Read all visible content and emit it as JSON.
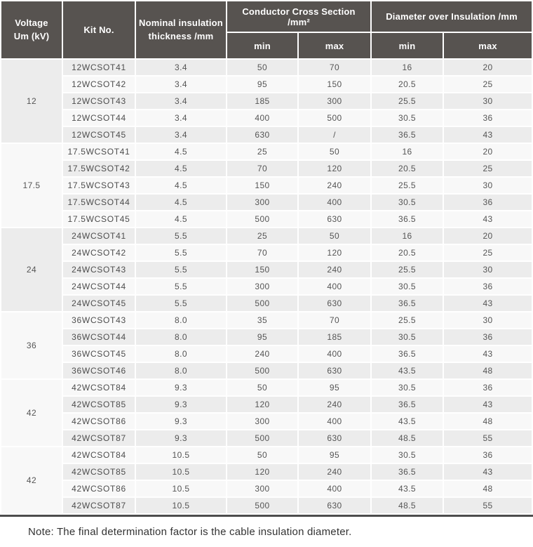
{
  "table": {
    "headers": {
      "voltage_line1": "Voltage",
      "voltage_line2": "Um (kV)",
      "kit_no": "Kit No.",
      "nominal_insulation": "Nominal insulation thickness /mm",
      "conductor_group": "Conductor Cross Section /mm²",
      "diameter_group": "Diameter over Insulation /mm",
      "min": "min",
      "max": "max"
    },
    "groups": [
      {
        "voltage": "12",
        "rows": [
          {
            "kit_no": "12WCSOT41",
            "thickness": "3.4",
            "ccs_min": "50",
            "ccs_max": "70",
            "dia_min": "16",
            "dia_max": "20"
          },
          {
            "kit_no": "12WCSOT42",
            "thickness": "3.4",
            "ccs_min": "95",
            "ccs_max": "150",
            "dia_min": "20.5",
            "dia_max": "25"
          },
          {
            "kit_no": "12WCSOT43",
            "thickness": "3.4",
            "ccs_min": "185",
            "ccs_max": "300",
            "dia_min": "25.5",
            "dia_max": "30"
          },
          {
            "kit_no": "12WCSOT44",
            "thickness": "3.4",
            "ccs_min": "400",
            "ccs_max": "500",
            "dia_min": "30.5",
            "dia_max": "36"
          },
          {
            "kit_no": "12WCSOT45",
            "thickness": "3.4",
            "ccs_min": "630",
            "ccs_max": "/",
            "dia_min": "36.5",
            "dia_max": "43"
          }
        ]
      },
      {
        "voltage": "17.5",
        "rows": [
          {
            "kit_no": "17.5WCSOT41",
            "thickness": "4.5",
            "ccs_min": "25",
            "ccs_max": "50",
            "dia_min": "16",
            "dia_max": "20"
          },
          {
            "kit_no": "17.5WCSOT42",
            "thickness": "4.5",
            "ccs_min": "70",
            "ccs_max": "120",
            "dia_min": "20.5",
            "dia_max": "25"
          },
          {
            "kit_no": "17.5WCSOT43",
            "thickness": "4.5",
            "ccs_min": "150",
            "ccs_max": "240",
            "dia_min": "25.5",
            "dia_max": "30"
          },
          {
            "kit_no": "17.5WCSOT44",
            "thickness": "4.5",
            "ccs_min": "300",
            "ccs_max": "400",
            "dia_min": "30.5",
            "dia_max": "36"
          },
          {
            "kit_no": "17.5WCSOT45",
            "thickness": "4.5",
            "ccs_min": "500",
            "ccs_max": "630",
            "dia_min": "36.5",
            "dia_max": "43"
          }
        ]
      },
      {
        "voltage": "24",
        "rows": [
          {
            "kit_no": "24WCSOT41",
            "thickness": "5.5",
            "ccs_min": "25",
            "ccs_max": "50",
            "dia_min": "16",
            "dia_max": "20"
          },
          {
            "kit_no": "24WCSOT42",
            "thickness": "5.5",
            "ccs_min": "70",
            "ccs_max": "120",
            "dia_min": "20.5",
            "dia_max": "25"
          },
          {
            "kit_no": "24WCSOT43",
            "thickness": "5.5",
            "ccs_min": "150",
            "ccs_max": "240",
            "dia_min": "25.5",
            "dia_max": "30"
          },
          {
            "kit_no": "24WCSOT44",
            "thickness": "5.5",
            "ccs_min": "300",
            "ccs_max": "400",
            "dia_min": "30.5",
            "dia_max": "36"
          },
          {
            "kit_no": "24WCSOT45",
            "thickness": "5.5",
            "ccs_min": "500",
            "ccs_max": "630",
            "dia_min": "36.5",
            "dia_max": "43"
          }
        ]
      },
      {
        "voltage": "36",
        "rows": [
          {
            "kit_no": "36WCSOT43",
            "thickness": "8.0",
            "ccs_min": "35",
            "ccs_max": "70",
            "dia_min": "25.5",
            "dia_max": "30"
          },
          {
            "kit_no": "36WCSOT44",
            "thickness": "8.0",
            "ccs_min": "95",
            "ccs_max": "185",
            "dia_min": "30.5",
            "dia_max": "36"
          },
          {
            "kit_no": "36WCSOT45",
            "thickness": "8.0",
            "ccs_min": "240",
            "ccs_max": "400",
            "dia_min": "36.5",
            "dia_max": "43"
          },
          {
            "kit_no": "36WCSOT46",
            "thickness": "8.0",
            "ccs_min": "500",
            "ccs_max": "630",
            "dia_min": "43.5",
            "dia_max": "48"
          }
        ]
      },
      {
        "voltage": "42",
        "rows": [
          {
            "kit_no": "42WCSOT84",
            "thickness": "9.3",
            "ccs_min": "50",
            "ccs_max": "95",
            "dia_min": "30.5",
            "dia_max": "36"
          },
          {
            "kit_no": "42WCSOT85",
            "thickness": "9.3",
            "ccs_min": "120",
            "ccs_max": "240",
            "dia_min": "36.5",
            "dia_max": "43"
          },
          {
            "kit_no": "42WCSOT86",
            "thickness": "9.3",
            "ccs_min": "300",
            "ccs_max": "400",
            "dia_min": "43.5",
            "dia_max": "48"
          },
          {
            "kit_no": "42WCSOT87",
            "thickness": "9.3",
            "ccs_min": "500",
            "ccs_max": "630",
            "dia_min": "48.5",
            "dia_max": "55"
          }
        ]
      },
      {
        "voltage": "42",
        "rows": [
          {
            "kit_no": "42WCSOT84",
            "thickness": "10.5",
            "ccs_min": "50",
            "ccs_max": "95",
            "dia_min": "30.5",
            "dia_max": "36"
          },
          {
            "kit_no": "42WCSOT85",
            "thickness": "10.5",
            "ccs_min": "120",
            "ccs_max": "240",
            "dia_min": "36.5",
            "dia_max": "43"
          },
          {
            "kit_no": "42WCSOT86",
            "thickness": "10.5",
            "ccs_min": "300",
            "ccs_max": "400",
            "dia_min": "43.5",
            "dia_max": "48"
          },
          {
            "kit_no": "42WCSOT87",
            "thickness": "10.5",
            "ccs_min": "500",
            "ccs_max": "630",
            "dia_min": "48.5",
            "dia_max": "55"
          }
        ]
      }
    ]
  },
  "note": "Note: The final determination factor is the cable insulation diameter.",
  "colors": {
    "header_bg": "#575350",
    "header_text": "#ffffff",
    "row_odd": "#ececec",
    "row_even": "#f8f8f8",
    "voltage_col_bg": "#e8e8e8",
    "bottom_rule": "#4d4d4d"
  }
}
